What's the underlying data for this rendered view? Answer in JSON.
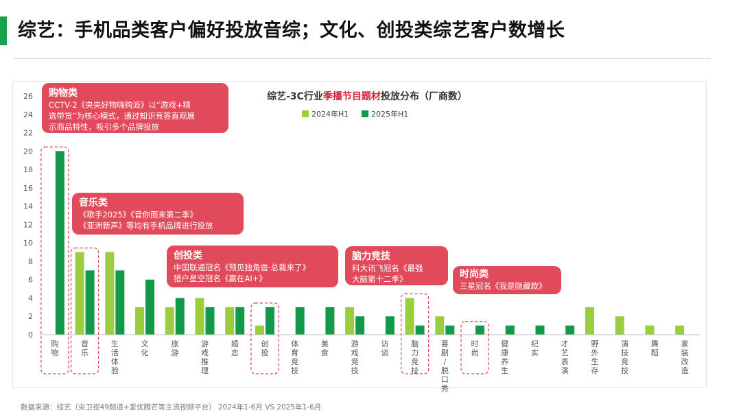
{
  "header": {
    "title": "综艺：手机品类客户偏好投放音综；文化、创投类综艺客户数增长",
    "accent_color": "#17a34a"
  },
  "chart_data": {
    "type": "bar",
    "title_parts": [
      "综艺-3C行业",
      "季播节目题材",
      "投放分布（厂商数）"
    ],
    "title_highlight_color": "#d6203a",
    "legend": [
      "2024年H1",
      "2025年H1"
    ],
    "legend_position": "top-center",
    "series_colors": [
      "#9bcd3c",
      "#129a4a"
    ],
    "categories": [
      "购物",
      "音乐",
      "生活体验",
      "文化",
      "旅游",
      "游戏推理",
      "婚恋",
      "创投",
      "体育竞技",
      "美食",
      "游戏竞技",
      "访谈",
      "脑力竞技",
      "喜剧/脱口秀",
      "时尚",
      "健康养生",
      "纪实",
      "才艺表演",
      "野外生存",
      "演技竞技",
      "舞蹈",
      "家装改造"
    ],
    "series": [
      {
        "name": "2024年H1",
        "values": [
          0,
          9,
          9,
          3,
          3,
          4,
          3,
          1,
          0,
          0,
          3,
          0,
          4,
          2,
          0,
          0,
          0,
          0,
          3,
          2,
          1,
          1
        ]
      },
      {
        "name": "2025年H1",
        "values": [
          20,
          7,
          7,
          6,
          4,
          3,
          3,
          3,
          3,
          3,
          2,
          2,
          1,
          1,
          1,
          1,
          1,
          1,
          0,
          0,
          0,
          0
        ]
      }
    ],
    "ylim": [
      0,
      26
    ],
    "yticks": [
      "0",
      "2",
      "4",
      "6",
      "8",
      "10",
      "12",
      "14",
      "16",
      "18",
      "20",
      "22",
      "24",
      "26"
    ],
    "grid": false,
    "highlighted_categories": [
      "购物",
      "音乐",
      "创投",
      "脑力竞技",
      "时尚"
    ]
  },
  "callouts": [
    {
      "title": "购物类",
      "lines": [
        "CCTV-2《央央好物嗨购派》以“游戏+精",
        "选带货”为核心模式，通过知识竞答直观展",
        "示商品特性，吸引多个品牌投放"
      ]
    },
    {
      "title": "音乐类",
      "lines": [
        "《歌手2025》《音你而来第二季》",
        "《亚洲新声》等均有手机品牌进行投放"
      ]
    },
    {
      "title": "创投类",
      "lines": [
        "中国联通冠名《预见独角兽·总裁来了》",
        "猎户星空冠名《赢在AI+》"
      ]
    },
    {
      "title": "脑力竞技",
      "lines": [
        "科大讯飞冠名《最强",
        "大脑第十二季》"
      ]
    },
    {
      "title": "时尚类",
      "lines": [
        "三星冠名《我是隐藏款》"
      ]
    }
  ],
  "footer": {
    "source": "数据来源：综艺（央卫视49频道+爱优腾芒等主流视频平台） 2024年1-6月 VS 2025年1-6月"
  }
}
